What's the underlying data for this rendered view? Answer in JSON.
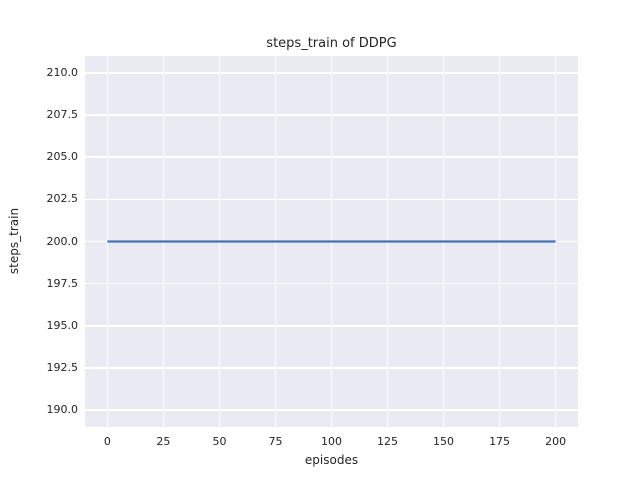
{
  "chart_data": {
    "type": "line",
    "title": "steps_train of DDPG",
    "xlabel": "episodes",
    "ylabel": "steps_train",
    "xlim": [
      -10,
      210
    ],
    "ylim": [
      189,
      211
    ],
    "grid": true,
    "legend_position": "none",
    "xticks": [
      {
        "value": 0,
        "label": "0"
      },
      {
        "value": 25,
        "label": "25"
      },
      {
        "value": 50,
        "label": "50"
      },
      {
        "value": 75,
        "label": "75"
      },
      {
        "value": 100,
        "label": "100"
      },
      {
        "value": 125,
        "label": "125"
      },
      {
        "value": 150,
        "label": "150"
      },
      {
        "value": 175,
        "label": "175"
      },
      {
        "value": 200,
        "label": "200"
      }
    ],
    "yticks": [
      {
        "value": 190.0,
        "label": "190.0"
      },
      {
        "value": 192.5,
        "label": "192.5"
      },
      {
        "value": 195.0,
        "label": "195.0"
      },
      {
        "value": 197.5,
        "label": "197.5"
      },
      {
        "value": 200.0,
        "label": "200.0"
      },
      {
        "value": 202.5,
        "label": "202.5"
      },
      {
        "value": 205.0,
        "label": "205.0"
      },
      {
        "value": 207.5,
        "label": "207.5"
      },
      {
        "value": 210.0,
        "label": "210.0"
      }
    ],
    "series": [
      {
        "name": "steps_train",
        "color": "#4c72b0",
        "constant_value": 200,
        "x": [
          0,
          200
        ],
        "y": [
          200,
          200
        ]
      }
    ],
    "style": {
      "figure_bg": "#ffffff",
      "plot_bg": "#eaeaf2",
      "grid_color": "#ffffff",
      "text_color": "#262626",
      "line_width": 2.2
    }
  }
}
